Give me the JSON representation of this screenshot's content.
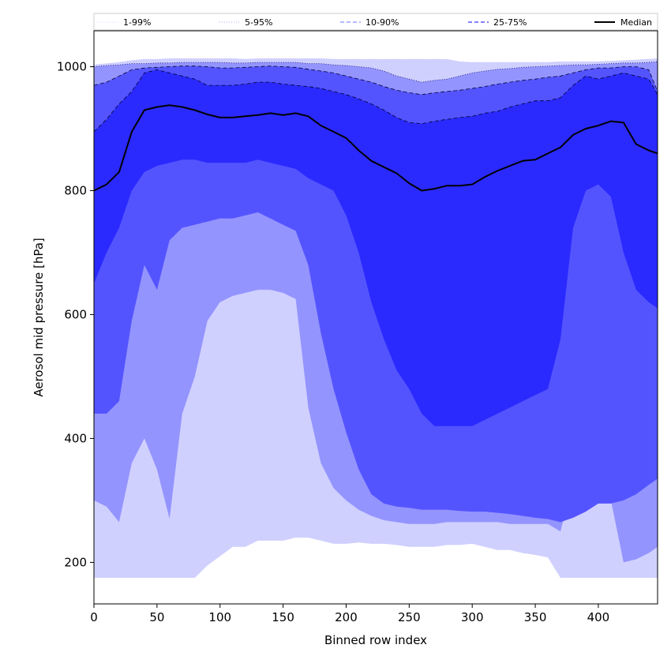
{
  "chart_data": {
    "type": "area",
    "title": "",
    "xlabel": "Binned row index",
    "ylabel": "Aerosol mid pressure [hPa]",
    "xlim": [
      0,
      447
    ],
    "ylim": [
      133,
      1058
    ],
    "x_ticks": [
      0,
      50,
      100,
      150,
      200,
      250,
      300,
      350,
      400
    ],
    "y_ticks": [
      200,
      400,
      600,
      800,
      1000
    ],
    "grid": false,
    "legend_position": "top, spanning full width",
    "x": [
      0,
      10,
      20,
      30,
      40,
      50,
      60,
      70,
      80,
      90,
      100,
      110,
      120,
      130,
      140,
      150,
      160,
      170,
      180,
      190,
      200,
      210,
      220,
      230,
      240,
      250,
      260,
      270,
      280,
      290,
      300,
      310,
      320,
      330,
      340,
      350,
      360,
      370,
      380,
      390,
      400,
      410,
      420,
      430,
      440,
      447
    ],
    "series": [
      {
        "name": "1-99%",
        "color": "#d0d0ff",
        "style": "dotted",
        "lower": [
          175,
          175,
          175,
          175,
          175,
          175,
          175,
          175,
          175,
          195,
          210,
          225,
          225,
          235,
          235,
          235,
          240,
          240,
          235,
          230,
          230,
          232,
          230,
          230,
          228,
          225,
          225,
          225,
          228,
          228,
          230,
          225,
          220,
          220,
          215,
          212,
          208,
          175,
          175,
          175,
          175,
          175,
          175,
          175,
          175,
          175
        ],
        "upper": [
          1003,
          1005,
          1007,
          1010,
          1012,
          1012,
          1013,
          1013,
          1013,
          1013,
          1013,
          1013,
          1012,
          1013,
          1013,
          1013,
          1013,
          1013,
          1013,
          1012,
          1012,
          1012,
          1012,
          1012,
          1012,
          1012,
          1012,
          1012,
          1012,
          1008,
          1007,
          1007,
          1007,
          1007,
          1007,
          1007,
          1007,
          1008,
          1008,
          1008,
          1008,
          1009,
          1010,
          1011,
          1012,
          1013
        ]
      },
      {
        "name": "5-95%",
        "color": "#9494ff",
        "style": "dotted",
        "lower": [
          300,
          290,
          265,
          360,
          400,
          350,
          270,
          440,
          500,
          590,
          620,
          630,
          635,
          640,
          640,
          635,
          625,
          450,
          360,
          320,
          300,
          285,
          275,
          268,
          265,
          262,
          262,
          262,
          265,
          265,
          265,
          265,
          265,
          262,
          262,
          262,
          262,
          250,
          330,
          390,
          360,
          300,
          200,
          205,
          215,
          225
        ],
        "upper": [
          1000,
          1002,
          1003,
          1005,
          1005,
          1006,
          1006,
          1007,
          1007,
          1007,
          1007,
          1006,
          1006,
          1007,
          1007,
          1007,
          1007,
          1005,
          1005,
          1003,
          1002,
          1000,
          998,
          993,
          985,
          980,
          975,
          978,
          980,
          985,
          990,
          993,
          996,
          997,
          999,
          1000,
          1001,
          1002,
          1003,
          1003,
          1004,
          1005,
          1006,
          1006,
          1007,
          1008
        ]
      },
      {
        "name": "10-90%",
        "color": "#5454ff",
        "style": "dashed",
        "lower": [
          440,
          440,
          460,
          590,
          680,
          640,
          720,
          740,
          745,
          750,
          755,
          755,
          760,
          765,
          755,
          745,
          735,
          680,
          570,
          480,
          410,
          350,
          310,
          295,
          290,
          288,
          285,
          285,
          285,
          283,
          282,
          282,
          280,
          278,
          275,
          272,
          270,
          265,
          272,
          282,
          295,
          295,
          300,
          310,
          325,
          335
        ],
        "upper": [
          970,
          975,
          985,
          995,
          998,
          999,
          1000,
          1001,
          1001,
          1000,
          998,
          998,
          999,
          1000,
          1001,
          1000,
          999,
          996,
          993,
          990,
          985,
          980,
          975,
          968,
          962,
          958,
          955,
          958,
          960,
          962,
          965,
          968,
          972,
          975,
          978,
          980,
          983,
          985,
          990,
          995,
          998,
          998,
          1000,
          1000,
          995,
          960
        ]
      },
      {
        "name": "25-75%",
        "color": "#2a2aff",
        "style": "dashed",
        "lower": [
          650,
          700,
          740,
          800,
          830,
          840,
          845,
          850,
          850,
          845,
          845,
          845,
          845,
          850,
          845,
          840,
          835,
          820,
          810,
          800,
          760,
          700,
          620,
          560,
          510,
          480,
          440,
          420,
          420,
          420,
          420,
          430,
          440,
          450,
          460,
          470,
          480,
          560,
          740,
          800,
          810,
          790,
          700,
          640,
          620,
          610
        ],
        "upper": [
          895,
          915,
          940,
          960,
          990,
          995,
          990,
          985,
          980,
          970,
          970,
          970,
          972,
          975,
          975,
          972,
          970,
          968,
          965,
          960,
          955,
          948,
          940,
          930,
          918,
          910,
          908,
          912,
          915,
          918,
          920,
          925,
          928,
          935,
          940,
          945,
          945,
          950,
          970,
          985,
          980,
          985,
          990,
          985,
          980,
          955
        ]
      },
      {
        "name": "Median",
        "color": "#000000",
        "style": "solid",
        "values": [
          800,
          810,
          830,
          895,
          930,
          935,
          938,
          935,
          930,
          923,
          918,
          918,
          920,
          922,
          925,
          922,
          925,
          920,
          905,
          895,
          885,
          865,
          848,
          838,
          828,
          812,
          800,
          803,
          808,
          808,
          810,
          822,
          832,
          840,
          848,
          850,
          860,
          870,
          890,
          900,
          905,
          912,
          910,
          875,
          865,
          860
        ]
      }
    ]
  }
}
